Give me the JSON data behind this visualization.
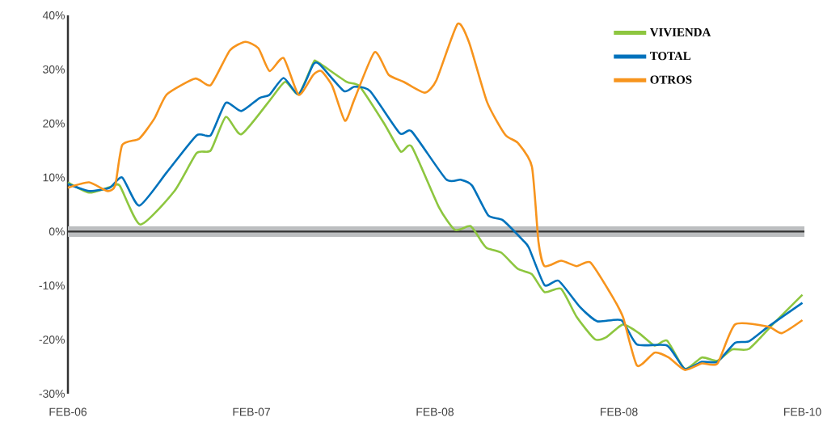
{
  "chart_data": {
    "type": "line",
    "xlim": [
      "2006-02",
      "2010-02-05"
    ],
    "xticks": [
      {
        "value": "2006-02",
        "label": "FEB-06"
      },
      {
        "value": "2007-02",
        "label": "FEB-07"
      },
      {
        "value": "2008-02",
        "label": "FEB-08"
      },
      {
        "value": "2009-02",
        "label": "FEB-08"
      },
      {
        "value": "2010-02",
        "label": "FEB-10"
      }
    ],
    "ylim": [
      -30,
      40
    ],
    "yticks": [
      {
        "value": -30,
        "label": "-30%"
      },
      {
        "value": -20,
        "label": "-20%"
      },
      {
        "value": -10,
        "label": "-10%"
      },
      {
        "value": 0,
        "label": "0%"
      },
      {
        "value": 10,
        "label": "10%"
      },
      {
        "value": 20,
        "label": "20%"
      },
      {
        "value": 30,
        "label": "30%"
      },
      {
        "value": 40,
        "label": "40%"
      }
    ],
    "legend": "top right",
    "ref_lines": [
      {
        "axis": "y",
        "value": 0,
        "color": "#bcbec0"
      }
    ],
    "series": [
      {
        "name": "VIVIENDA",
        "color": "#8dc63f",
        "x": [
          "2006-02-01",
          "2006-03-15",
          "2006-04-25",
          "2006-05-15",
          "2006-06-25",
          "2006-09-01",
          "2006-10-15",
          "2006-11-12",
          "2006-12-12",
          "2007-01-12",
          "2007-03-09",
          "2007-04-09",
          "2007-05-06",
          "2007-06-04",
          "2007-06-12",
          "2007-08-09",
          "2007-09-04",
          "2007-10-23",
          "2007-11-25",
          "2007-12-17",
          "2008-02-09",
          "2008-03-12",
          "2008-04-12",
          "2008-05-04",
          "2008-05-15",
          "2008-06-12",
          "2008-07-15",
          "2008-08-12",
          "2008-09-06",
          "2008-10-09",
          "2008-11-09",
          "2008-12-15",
          "2009-01-06",
          "2009-02-09",
          "2009-03-13",
          "2009-04-13",
          "2009-05-08",
          "2009-06-12",
          "2009-07-16",
          "2009-08-16",
          "2009-09-14",
          "2009-10-18",
          "2009-12-07",
          "2010-02-01"
        ],
        "values": [
          9.1,
          7.2,
          8.2,
          8.5,
          1.3,
          7.5,
          14.5,
          15,
          21.2,
          18,
          24.2,
          27.7,
          25.4,
          31.2,
          31.4,
          27.7,
          26.9,
          20,
          14.8,
          15.7,
          4.5,
          0.3,
          1,
          -1.9,
          -3.1,
          -3.9,
          -6.9,
          -7.9,
          -11.2,
          -10.6,
          -15.8,
          -19.9,
          -19.6,
          -17.2,
          -18.8,
          -21.1,
          -20.2,
          -25.4,
          -23.3,
          -23.9,
          -21.8,
          -21.7,
          -16.9,
          -11.7
        ]
      },
      {
        "name": "TOTAL",
        "color": "#0072bc",
        "x": [
          "2006-02-01",
          "2006-03-15",
          "2006-04-25",
          "2006-05-20",
          "2006-06-23",
          "2006-08-17",
          "2006-10-15",
          "2006-11-12",
          "2006-12-12",
          "2007-01-12",
          "2007-02-17",
          "2007-03-09",
          "2007-04-06",
          "2007-05-06",
          "2007-06-04",
          "2007-06-17",
          "2007-08-04",
          "2007-08-25",
          "2007-09-25",
          "2007-11-23",
          "2007-12-17",
          "2008-02-23",
          "2008-03-23",
          "2008-04-15",
          "2008-05-17",
          "2008-06-15",
          "2008-07-25",
          "2008-08-06",
          "2008-09-06",
          "2008-10-04",
          "2008-11-15",
          "2008-12-20",
          "2009-02-06",
          "2009-03-09",
          "2009-05-08",
          "2009-06-12",
          "2009-07-16",
          "2009-08-16",
          "2009-09-20",
          "2009-10-18",
          "2009-11-25",
          "2010-02-01"
        ],
        "values": [
          8.8,
          7.5,
          8.1,
          10,
          4.8,
          11,
          17.8,
          17.8,
          23.8,
          22.3,
          24.7,
          25.3,
          28.4,
          25.4,
          30.9,
          30.9,
          26,
          26.8,
          26,
          18.2,
          18.5,
          9.7,
          9.6,
          8.5,
          3,
          2.1,
          -1.6,
          -3,
          -9.9,
          -9.1,
          -13.9,
          -16.6,
          -16.4,
          -20.9,
          -21.1,
          -25.4,
          -24.1,
          -24.1,
          -20.6,
          -20.3,
          -17.6,
          -13.2
        ]
      },
      {
        "name": "OTROS",
        "color": "#f7941d",
        "x": [
          "2006-02-01",
          "2006-03-15",
          "2006-04-20",
          "2006-05-06",
          "2006-05-20",
          "2006-06-23",
          "2006-07-23",
          "2006-08-17",
          "2006-10-12",
          "2006-11-12",
          "2006-12-20",
          "2007-01-20",
          "2007-02-15",
          "2007-03-09",
          "2007-04-06",
          "2007-05-06",
          "2007-06-04",
          "2007-06-20",
          "2007-07-12",
          "2007-08-06",
          "2007-08-25",
          "2007-10-04",
          "2007-11-01",
          "2007-12-01",
          "2008-01-12",
          "2008-02-04",
          "2008-03-17",
          "2008-04-09",
          "2008-05-15",
          "2008-06-20",
          "2008-07-15",
          "2008-08-12",
          "2008-08-25",
          "2008-09-06",
          "2008-10-09",
          "2008-11-09",
          "2008-12-06",
          "2009-01-15",
          "2009-02-09",
          "2009-03-09",
          "2009-04-13",
          "2009-05-11",
          "2009-06-12",
          "2009-07-16",
          "2009-08-16",
          "2009-09-20",
          "2009-11-25",
          "2009-12-22",
          "2010-02-01"
        ],
        "values": [
          8.1,
          9.1,
          7.5,
          8.5,
          16,
          17.2,
          20.9,
          25.4,
          28.3,
          27.1,
          33.5,
          35.1,
          33.9,
          29.7,
          32.1,
          25.3,
          29,
          29.7,
          26.9,
          20.5,
          24.5,
          33.2,
          29,
          27.7,
          25.7,
          28,
          38.4,
          35,
          23.9,
          17.9,
          16.4,
          12,
          -1.9,
          -6.4,
          -5.4,
          -6.4,
          -5.7,
          -11.4,
          -15.8,
          -24.8,
          -22.4,
          -23.3,
          -25.6,
          -24.4,
          -24.4,
          -17.2,
          -17.6,
          -18.8,
          -16.4
        ]
      }
    ]
  }
}
